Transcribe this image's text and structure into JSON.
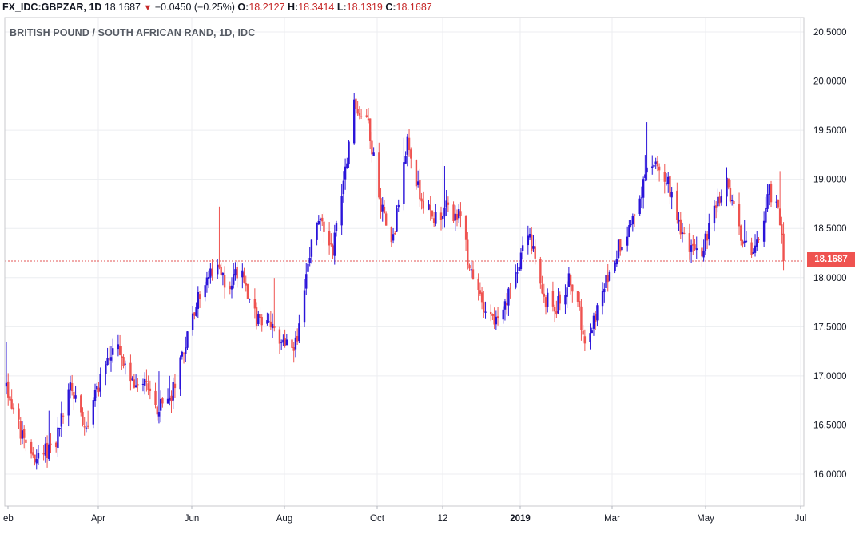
{
  "header": {
    "symbol": "FX_IDC:GBPZAR, 1D",
    "last": "18.1687",
    "arrow": "▼",
    "change": "−0.0450 (−0.25%)",
    "o_label": "O:",
    "o": "18.2127",
    "h_label": "H:",
    "h": "18.3414",
    "l_label": "L:",
    "l": "18.1319",
    "c_label": "C:",
    "c": "18.1687"
  },
  "subtitle": "BRITISH POUND / SOUTH AFRICAN RAND, 1D, IDC",
  "price_badge": "18.1687",
  "colors": {
    "up": "#2a14d9",
    "down": "#ef5350",
    "price_line": "#e35555"
  },
  "chart_data": {
    "type": "candlestick",
    "ylim": [
      15.8,
      20.6
    ],
    "yticks": [
      "20.5000",
      "20.0000",
      "19.5000",
      "19.0000",
      "18.5000",
      "18.0000",
      "17.5000",
      "17.0000",
      "16.5000",
      "16.0000"
    ],
    "xticks": [
      {
        "label": "eb",
        "bold": false
      },
      {
        "label": "Apr",
        "bold": false
      },
      {
        "label": "Jun",
        "bold": false
      },
      {
        "label": "Aug",
        "bold": false
      },
      {
        "label": "Oct",
        "bold": false
      },
      {
        "label": "12",
        "bold": false
      },
      {
        "label": "2019",
        "bold": true
      },
      {
        "label": "Mar",
        "bold": false
      },
      {
        "label": "May",
        "bold": false
      },
      {
        "label": "Jul",
        "bold": false
      }
    ],
    "last_price": 18.1687,
    "grid": true,
    "anchors": [
      {
        "d": 0,
        "v": 16.9
      },
      {
        "d": 10,
        "v": 16.3
      },
      {
        "d": 18,
        "v": 16.15
      },
      {
        "d": 28,
        "v": 16.35
      },
      {
        "d": 36,
        "v": 16.9
      },
      {
        "d": 45,
        "v": 16.5
      },
      {
        "d": 55,
        "v": 17.1
      },
      {
        "d": 62,
        "v": 17.3
      },
      {
        "d": 70,
        "v": 16.9
      },
      {
        "d": 78,
        "v": 17.0
      },
      {
        "d": 85,
        "v": 16.65
      },
      {
        "d": 92,
        "v": 16.75
      },
      {
        "d": 100,
        "v": 17.3
      },
      {
        "d": 110,
        "v": 17.9
      },
      {
        "d": 118,
        "v": 18.1
      },
      {
        "d": 125,
        "v": 17.9
      },
      {
        "d": 132,
        "v": 18.15
      },
      {
        "d": 140,
        "v": 17.6
      },
      {
        "d": 148,
        "v": 17.5
      },
      {
        "d": 156,
        "v": 17.35
      },
      {
        "d": 164,
        "v": 17.3
      },
      {
        "d": 170,
        "v": 18.2
      },
      {
        "d": 176,
        "v": 18.6
      },
      {
        "d": 184,
        "v": 18.3
      },
      {
        "d": 190,
        "v": 19.0
      },
      {
        "d": 196,
        "v": 19.75
      },
      {
        "d": 204,
        "v": 19.6
      },
      {
        "d": 210,
        "v": 18.8
      },
      {
        "d": 218,
        "v": 18.4
      },
      {
        "d": 226,
        "v": 19.4
      },
      {
        "d": 232,
        "v": 18.9
      },
      {
        "d": 240,
        "v": 18.6
      },
      {
        "d": 248,
        "v": 18.7
      },
      {
        "d": 256,
        "v": 18.6
      },
      {
        "d": 262,
        "v": 18.0
      },
      {
        "d": 270,
        "v": 17.7
      },
      {
        "d": 278,
        "v": 17.5
      },
      {
        "d": 286,
        "v": 18.0
      },
      {
        "d": 294,
        "v": 18.5
      },
      {
        "d": 302,
        "v": 17.8
      },
      {
        "d": 310,
        "v": 17.7
      },
      {
        "d": 318,
        "v": 18.0
      },
      {
        "d": 326,
        "v": 17.4
      },
      {
        "d": 334,
        "v": 17.7
      },
      {
        "d": 342,
        "v": 18.2
      },
      {
        "d": 350,
        "v": 18.5
      },
      {
        "d": 358,
        "v": 18.9
      },
      {
        "d": 366,
        "v": 19.25
      },
      {
        "d": 374,
        "v": 18.9
      },
      {
        "d": 382,
        "v": 18.4
      },
      {
        "d": 390,
        "v": 18.2
      },
      {
        "d": 398,
        "v": 18.6
      },
      {
        "d": 406,
        "v": 18.95
      },
      {
        "d": 414,
        "v": 18.4
      },
      {
        "d": 422,
        "v": 18.25
      },
      {
        "d": 430,
        "v": 18.9
      },
      {
        "d": 436,
        "v": 18.6
      },
      {
        "d": 440,
        "v": 18.17
      }
    ],
    "series": [
      {
        "name": "GBPZAR",
        "values": "generated daily OHLC following anchors"
      }
    ]
  }
}
